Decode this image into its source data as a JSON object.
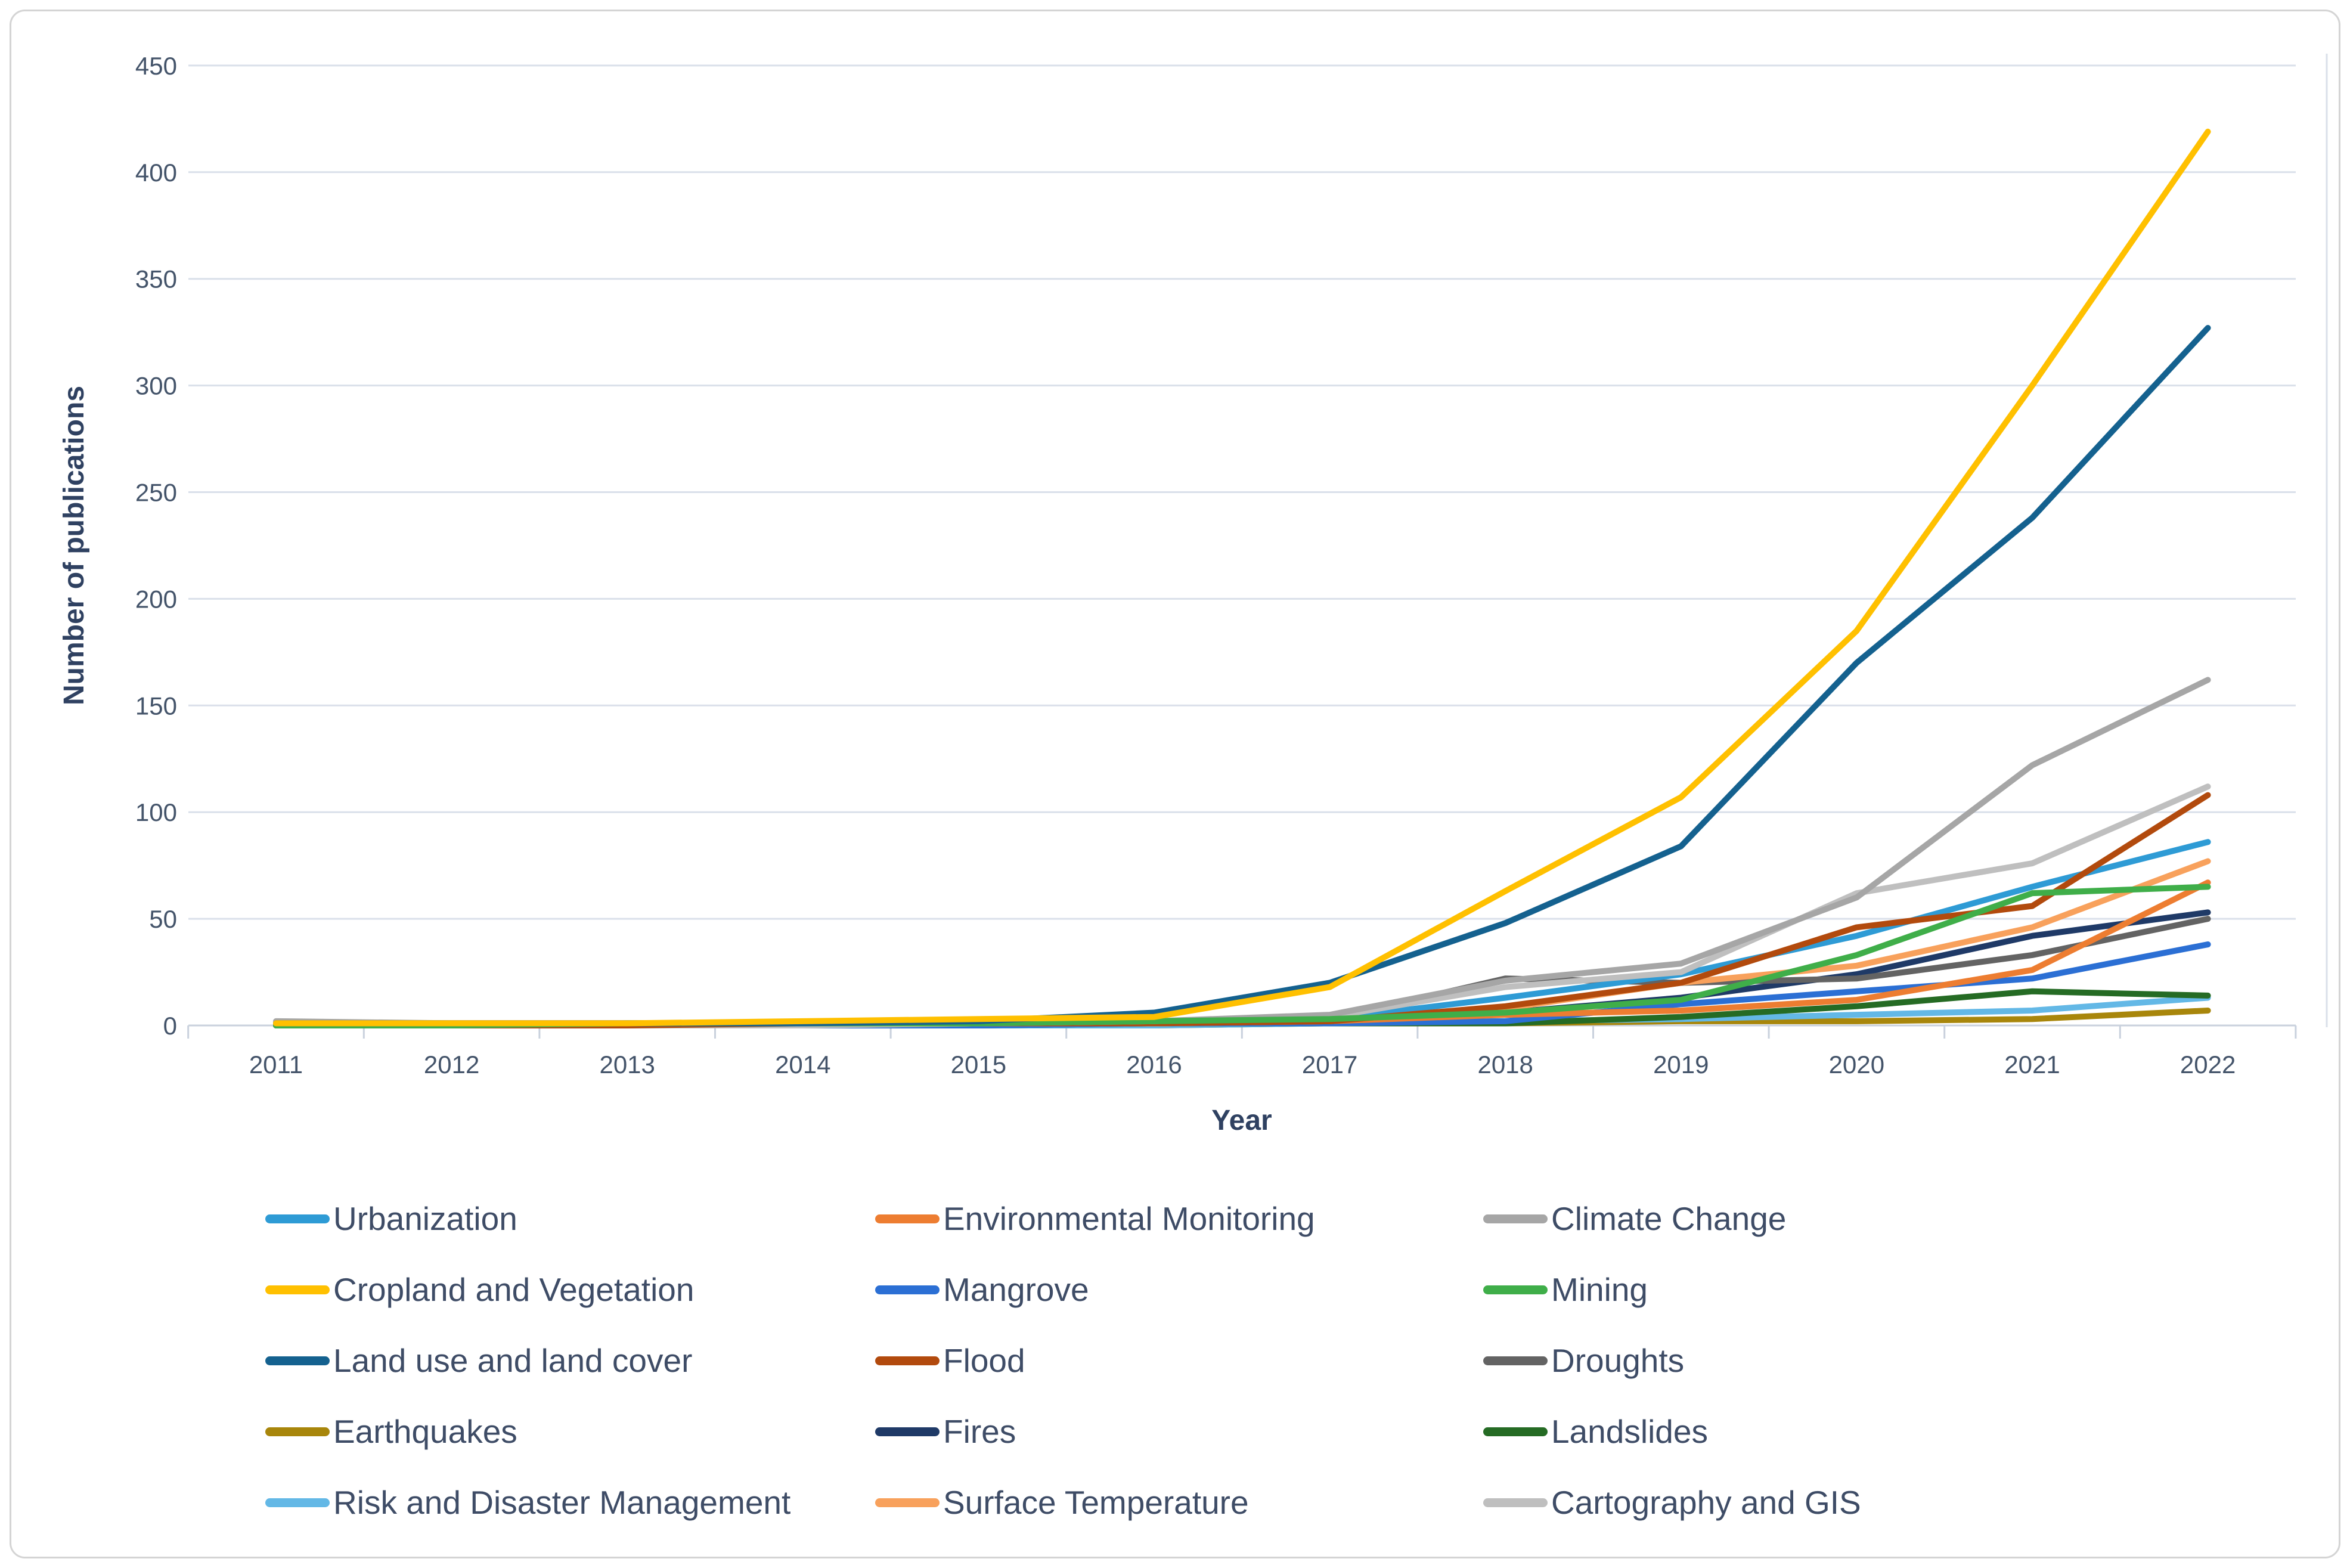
{
  "chart_data": {
    "type": "line",
    "title": "",
    "xlabel": "Year",
    "ylabel": "Number of publications",
    "x": [
      2011,
      2012,
      2013,
      2014,
      2015,
      2016,
      2017,
      2018,
      2019,
      2020,
      2021,
      2022
    ],
    "ylim": [
      0,
      450
    ],
    "ytick_step": 50,
    "grid": true,
    "legend_position": "bottom",
    "legend_columns": 3,
    "series": [
      {
        "name": "Urbanization",
        "color": "#2E9BD5",
        "values": [
          0,
          0,
          0,
          0,
          1,
          1,
          3,
          13,
          24,
          42,
          65,
          86
        ]
      },
      {
        "name": "Environmental Monitoring",
        "color": "#ED7D31",
        "values": [
          1,
          1,
          1,
          1,
          1,
          1,
          2,
          5,
          7,
          12,
          26,
          67
        ]
      },
      {
        "name": "Climate Change",
        "color": "#A6A6A6",
        "values": [
          2,
          1,
          1,
          1,
          1,
          2,
          5,
          21,
          29,
          60,
          122,
          162
        ]
      },
      {
        "name": "Cropland and Vegetation",
        "color": "#FFC000",
        "values": [
          1,
          1,
          1,
          2,
          3,
          4,
          18,
          63,
          107,
          185,
          300,
          419
        ]
      },
      {
        "name": "Mangrove",
        "color": "#2B6FD4",
        "values": [
          0,
          0,
          0,
          0,
          0,
          1,
          1,
          2,
          10,
          16,
          22,
          38
        ]
      },
      {
        "name": "Mining",
        "color": "#3FAE49",
        "values": [
          0,
          0,
          1,
          1,
          1,
          2,
          3,
          6,
          12,
          33,
          62,
          65
        ]
      },
      {
        "name": "Land use and land cover",
        "color": "#14618F",
        "values": [
          1,
          1,
          1,
          1,
          2,
          6,
          20,
          48,
          84,
          170,
          238,
          327
        ]
      },
      {
        "name": "Flood",
        "color": "#B24A0D",
        "values": [
          0,
          0,
          0,
          1,
          1,
          1,
          2,
          9,
          20,
          46,
          56,
          108
        ]
      },
      {
        "name": "Droughts",
        "color": "#636363",
        "values": [
          1,
          1,
          1,
          1,
          1,
          1,
          3,
          22,
          20,
          22,
          33,
          50
        ]
      },
      {
        "name": "Earthquakes",
        "color": "#A8860B",
        "values": [
          0,
          0,
          0,
          0,
          0,
          0,
          1,
          1,
          2,
          2,
          3,
          7
        ]
      },
      {
        "name": "Fires",
        "color": "#1F3A67",
        "values": [
          0,
          0,
          0,
          0,
          1,
          1,
          2,
          6,
          13,
          24,
          42,
          53
        ]
      },
      {
        "name": "Landslides",
        "color": "#256B24",
        "values": [
          0,
          0,
          0,
          0,
          0,
          1,
          1,
          1,
          4,
          9,
          16,
          14
        ]
      },
      {
        "name": "Risk and Disaster Management",
        "color": "#63B8E6",
        "values": [
          0,
          0,
          0,
          0,
          0,
          0,
          1,
          2,
          3,
          5,
          7,
          13
        ]
      },
      {
        "name": "Surface Temperature",
        "color": "#F8A15C",
        "values": [
          0,
          0,
          0,
          0,
          1,
          1,
          2,
          8,
          20,
          28,
          46,
          77
        ]
      },
      {
        "name": "Cartography and GIS",
        "color": "#BFBFBF",
        "values": [
          0,
          0,
          0,
          0,
          1,
          1,
          4,
          18,
          25,
          62,
          76,
          112
        ]
      }
    ],
    "draw_order": [
      "Earthquakes",
      "Risk and Disaster Management",
      "Landslides",
      "Mangrove",
      "Fires",
      "Droughts",
      "Surface Temperature",
      "Environmental Monitoring",
      "Urbanization",
      "Cartography and GIS",
      "Flood",
      "Climate Change",
      "Mining",
      "Land use and land cover",
      "Cropland and Vegetation"
    ]
  },
  "colors": {
    "axis_text": "#44546A",
    "axis_title_text": "#2F4161",
    "legend_text": "#3E4C66",
    "gridline": "#DAE0EA",
    "axis_line": "#C9D1DD",
    "frame_border": "#D4D4D4",
    "background": "#FFFFFF"
  }
}
